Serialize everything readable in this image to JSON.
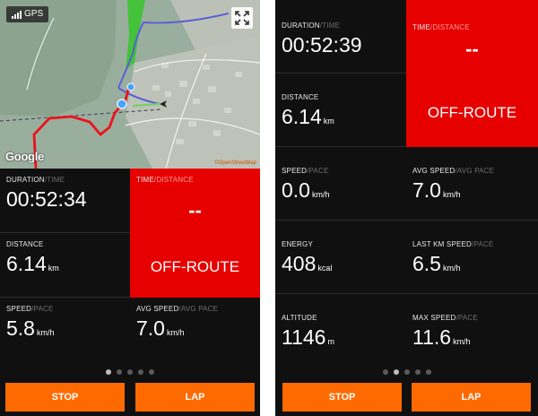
{
  "left": {
    "map": {
      "gps_label": "GPS",
      "logo": "Google",
      "credit": "©OpenStreetMap",
      "expand_icon": "expand-icon"
    },
    "metrics": {
      "duration": {
        "label": "DURATION",
        "alt": "/TIME",
        "value": "00:52:34",
        "unit": ""
      },
      "distance": {
        "label": "DISTANCE",
        "value": "6.14",
        "unit": "km"
      },
      "speed": {
        "label": "SPEED",
        "alt": "/PACE",
        "value": "5.8",
        "unit": "km/h"
      },
      "avg_speed": {
        "label": "AVG SPEED",
        "alt": "/AVG PACE",
        "value": "7.0",
        "unit": "km/h"
      }
    },
    "panel": {
      "label": "TIME",
      "alt": "/DISTANCE",
      "dash": "--",
      "status": "OFF-ROUTE"
    },
    "pager": {
      "count": 5,
      "active": 0
    },
    "buttons": {
      "stop": "STOP",
      "lap": "LAP"
    }
  },
  "right": {
    "metrics": {
      "duration": {
        "label": "DURATION",
        "alt": "/TIME",
        "value": "00:52:39"
      },
      "distance": {
        "label": "DISTANCE",
        "value": "6.14",
        "unit": "km"
      },
      "speed": {
        "label": "SPEED",
        "alt": "/PACE",
        "value": "0.0",
        "unit": "km/h"
      },
      "avg_speed": {
        "label": "AVG SPEED",
        "alt": "/AVG PACE",
        "value": "7.0",
        "unit": "km/h"
      },
      "energy": {
        "label": "ENERGY",
        "value": "408",
        "unit": "kcal"
      },
      "last_km_speed": {
        "label": "LAST KM SPEED",
        "alt": "/PACE",
        "value": "6.5",
        "unit": "km/h"
      },
      "altitude": {
        "label": "ALTITUDE",
        "value": "1146",
        "unit": "m"
      },
      "max_speed": {
        "label": "MAX SPEED",
        "alt": "/PACE",
        "value": "11.6",
        "unit": "km/h"
      }
    },
    "panel": {
      "label": "TIME",
      "alt": "/DISTANCE",
      "dash": "--",
      "status": "OFF-ROUTE"
    },
    "pager": {
      "count": 5,
      "active": 1
    },
    "buttons": {
      "stop": "STOP",
      "lap": "LAP"
    }
  },
  "colors": {
    "background": "#101010",
    "accent": "#ff6a00",
    "alert": "#e60000",
    "route_recorded": "#e8141c",
    "route_planned": "#5b5fd6"
  }
}
